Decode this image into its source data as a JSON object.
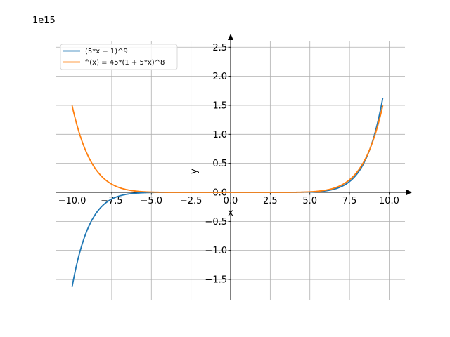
{
  "chart_data": {
    "type": "line",
    "title": "",
    "xlabel": "x",
    "ylabel": "y",
    "y_offset_label": "1e15",
    "xlim": [
      -11.0,
      11.0
    ],
    "ylim": [
      -1.85,
      2.6
    ],
    "grid": true,
    "legend_position": "top-left",
    "x_ticks": [
      -10.0,
      -7.5,
      -5.0,
      -2.5,
      0.0,
      2.5,
      5.0,
      7.5,
      10.0
    ],
    "x_tick_labels": [
      "−10.0",
      "−7.5",
      "−5.0",
      "−2.5",
      "0.0",
      "2.5",
      "5.0",
      "7.5",
      "10.0"
    ],
    "y_ticks": [
      -1.5,
      -1.0,
      -0.5,
      0.0,
      0.5,
      1.0,
      1.5,
      2.0,
      2.5
    ],
    "y_tick_labels": [
      "−1.5",
      "−1.0",
      "−0.5",
      "0.0",
      "0.5",
      "1.0",
      "1.5",
      "2.0",
      "2.5"
    ],
    "series": [
      {
        "name": "(5*x + 1)^9",
        "color": "#1f77b4",
        "expression": "(5*x + 1)^9",
        "scale": 1000000000000000.0,
        "domain": [
          -10.0,
          9.6
        ]
      },
      {
        "name": "f'(x) = 45*(1 + 5*x)^8",
        "color": "#ff7f0e",
        "expression": "45*(1 + 5*x)^8",
        "scale": 1000000000000000.0,
        "domain": [
          -10.0,
          9.6
        ]
      }
    ]
  }
}
